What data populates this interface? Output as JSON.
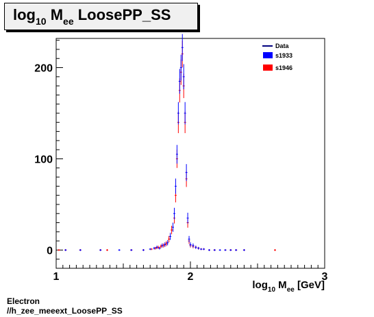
{
  "title": {
    "main": "log",
    "sub1": "10",
    "mid": " M",
    "sub2": "ee",
    "rest": " LoosePP_SS"
  },
  "footer": {
    "line1": "Electron",
    "line2": "//h_zee_meeext_LoosePP_SS"
  },
  "xaxis_label": {
    "main": "log",
    "sub1": "10",
    "mid": " M",
    "sub2": "ee",
    "rest": " [GeV]"
  },
  "colors": {
    "data": "#000080",
    "s1933": "#0000ff",
    "s1946": "#ff0000"
  },
  "chart_data": {
    "type": "scatter",
    "xlim": [
      1.0,
      3.0
    ],
    "ylim": [
      -20,
      232
    ],
    "x_ticks": [
      1,
      2,
      3
    ],
    "y_ticks": [
      0,
      100,
      200
    ],
    "grid": false,
    "legend_position": "top-right",
    "legend": [
      "Data",
      "s1933",
      "s1946"
    ],
    "series": [
      {
        "name": "s1933",
        "style": "error-bars",
        "points": [
          [
            1.07,
            0
          ],
          [
            1.18,
            0
          ],
          [
            1.33,
            0
          ],
          [
            1.47,
            0
          ],
          [
            1.56,
            0
          ],
          [
            1.65,
            0
          ],
          [
            1.7,
            1
          ],
          [
            1.73,
            2
          ],
          [
            1.75,
            3
          ],
          [
            1.77,
            2
          ],
          [
            1.79,
            5
          ],
          [
            1.81,
            6
          ],
          [
            1.83,
            8
          ],
          [
            1.85,
            15
          ],
          [
            1.87,
            25
          ],
          [
            1.88,
            40
          ],
          [
            1.89,
            70
          ],
          [
            1.9,
            105
          ],
          [
            1.91,
            150
          ],
          [
            1.92,
            185
          ],
          [
            1.93,
            200
          ],
          [
            1.94,
            222
          ],
          [
            1.95,
            190
          ],
          [
            1.96,
            150
          ],
          [
            1.97,
            85
          ],
          [
            1.98,
            35
          ],
          [
            1.99,
            12
          ],
          [
            2.0,
            6
          ],
          [
            2.02,
            5
          ],
          [
            2.04,
            3
          ],
          [
            2.06,
            2
          ],
          [
            2.08,
            1
          ],
          [
            2.1,
            1
          ],
          [
            2.14,
            0
          ],
          [
            2.18,
            0
          ],
          [
            2.22,
            0
          ],
          [
            2.26,
            0
          ],
          [
            2.3,
            0
          ],
          [
            2.34,
            0
          ],
          [
            2.4,
            0
          ]
        ]
      },
      {
        "name": "s1946",
        "style": "error-bars",
        "points": [
          [
            1.02,
            0
          ],
          [
            1.07,
            0
          ],
          [
            1.18,
            0
          ],
          [
            1.33,
            0
          ],
          [
            1.38,
            0
          ],
          [
            1.56,
            0
          ],
          [
            1.65,
            0
          ],
          [
            1.71,
            1
          ],
          [
            1.74,
            2
          ],
          [
            1.76,
            3
          ],
          [
            1.78,
            4
          ],
          [
            1.8,
            5
          ],
          [
            1.82,
            7
          ],
          [
            1.84,
            12
          ],
          [
            1.86,
            22
          ],
          [
            1.88,
            35
          ],
          [
            1.89,
            60
          ],
          [
            1.9,
            100
          ],
          [
            1.91,
            140
          ],
          [
            1.92,
            175
          ],
          [
            1.93,
            195
          ],
          [
            1.94,
            215
          ],
          [
            1.95,
            180
          ],
          [
            1.96,
            140
          ],
          [
            1.97,
            78
          ],
          [
            1.98,
            30
          ],
          [
            1.99,
            10
          ],
          [
            2.0,
            5
          ],
          [
            2.02,
            4
          ],
          [
            2.04,
            3
          ],
          [
            2.06,
            2
          ],
          [
            2.08,
            1
          ],
          [
            2.1,
            1
          ],
          [
            2.14,
            0
          ],
          [
            2.18,
            0
          ],
          [
            2.26,
            0
          ],
          [
            2.3,
            0
          ],
          [
            2.34,
            0
          ],
          [
            2.4,
            0
          ],
          [
            2.63,
            0
          ]
        ]
      }
    ]
  }
}
